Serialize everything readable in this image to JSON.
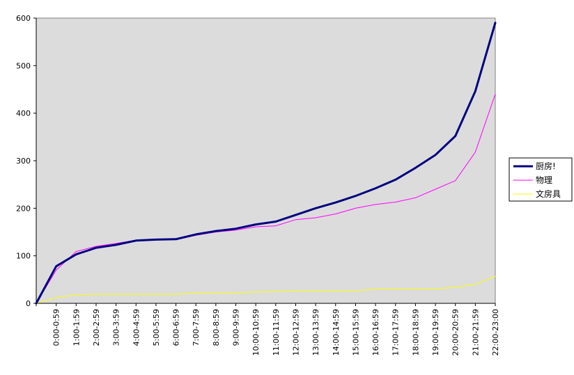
{
  "chart_data": {
    "type": "line",
    "title": "",
    "xlabel": "",
    "ylabel": "",
    "ylim": [
      0,
      600
    ],
    "yticks": [
      0,
      100,
      200,
      300,
      400,
      500,
      600
    ],
    "grid": false,
    "legend_position": "right",
    "categories": [
      "0:00-0:59",
      "1:00-1:59",
      "2:00-2:59",
      "3:00-3:59",
      "4:00-4:59",
      "5:00-5:59",
      "6:00-6:59",
      "7:00-7:59",
      "8:00-8:59",
      "9:00-9:59",
      "10:00-10:59",
      "11:00-11:59",
      "12:00-12:59",
      "13:00-13:59",
      "14:00-14:59",
      "15:00-15:59",
      "16:00-16:59",
      "17:00-17:59",
      "18:00-18:59",
      "19:00-19:59",
      "20:00-20:59",
      "21:00-21:59",
      "22:00-23:00"
    ],
    "x_start_value": 0,
    "series": [
      {
        "name": "厨房!",
        "color": "#000080",
        "width": 3,
        "values": [
          78,
          103,
          117,
          123,
          132,
          134,
          135,
          145,
          152,
          157,
          166,
          172,
          186,
          200,
          212,
          226,
          242,
          260,
          285,
          312,
          352,
          446,
          590
        ]
      },
      {
        "name": "物理",
        "color": "#ff00ff",
        "width": 1,
        "values": [
          70,
          109,
          120,
          126,
          133,
          133,
          134,
          143,
          150,
          154,
          161,
          163,
          176,
          180,
          188,
          200,
          208,
          213,
          222,
          240,
          258,
          318,
          440
        ]
      },
      {
        "name": "文房具",
        "color": "#ffff00",
        "width": 1,
        "values": [
          12,
          18,
          19,
          19,
          19,
          19,
          19,
          22,
          22,
          22,
          24,
          25,
          26,
          26,
          26,
          26,
          30,
          30,
          30,
          30,
          34,
          40,
          57
        ]
      }
    ],
    "colors": {
      "plot_background": "#dcdcdc",
      "axis": "#000000"
    }
  }
}
